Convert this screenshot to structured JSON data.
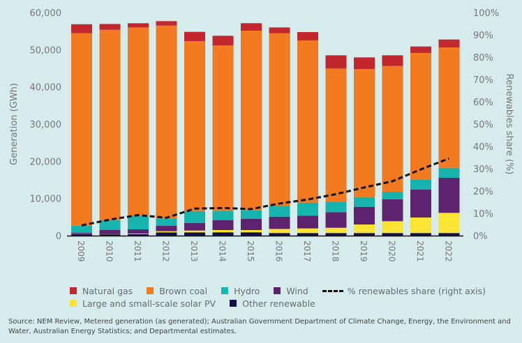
{
  "chart_data": {
    "type": "bar",
    "stacked": true,
    "categories": [
      "2009",
      "2010",
      "2011",
      "2012",
      "2013",
      "2014",
      "2015",
      "2016",
      "2017",
      "2018",
      "2019",
      "2020",
      "2021",
      "2022"
    ],
    "ylabel": "Generation (GWh)",
    "y2label": "Renewables share (%)",
    "ylim": [
      0,
      60000
    ],
    "y2lim": [
      0,
      100
    ],
    "yticks": [
      "0",
      "10,000",
      "20,000",
      "30,000",
      "40,000",
      "50,000",
      "60,000"
    ],
    "y2ticks": [
      "0%",
      "10%",
      "20%",
      "30%",
      "40%",
      "50%",
      "60%",
      "70%",
      "80%",
      "90%",
      "100%"
    ],
    "grid": false,
    "legend_position": "bottom",
    "series": [
      {
        "name": "Other renewable",
        "color": "#10124a",
        "values": [
          400,
          350,
          400,
          880,
          880,
          900,
          900,
          700,
          700,
          700,
          700,
          700,
          700,
          700
        ]
      },
      {
        "name": "Large and small-scale solar PV",
        "color": "#fde333",
        "values": [
          50,
          50,
          150,
          310,
          490,
          600,
          600,
          1100,
          1240,
          1420,
          2300,
          3180,
          4180,
          5430
        ]
      },
      {
        "name": "Wind",
        "color": "#5e236f",
        "values": [
          300,
          1100,
          1130,
          1435,
          2000,
          2690,
          3000,
          3300,
          3440,
          4190,
          4750,
          5930,
          7500,
          9430
        ]
      },
      {
        "name": "Hydro",
        "color": "#17b3ad",
        "values": [
          1900,
          2600,
          3560,
          2005,
          3245,
          2500,
          2310,
          2950,
          3490,
          2690,
          2620,
          2000,
          2750,
          2690
        ]
      },
      {
        "name": "Brown coal",
        "color": "#f47a21",
        "values": [
          51800,
          51250,
          50750,
          51870,
          45690,
          44440,
          48320,
          46380,
          43630,
          35940,
          34440,
          33820,
          34000,
          32380
        ]
      },
      {
        "name": "Natural gas",
        "color": "#c1272d",
        "values": [
          2400,
          1570,
          1130,
          1190,
          2500,
          2620,
          2000,
          1560,
          2250,
          3560,
          3130,
          2870,
          1740,
          2120
        ]
      }
    ],
    "line": {
      "name": "% renewables share (right axis)",
      "color": "#111111",
      "axis": "right",
      "values": [
        4.6,
        7.2,
        9.2,
        8.0,
        12.1,
        12.4,
        11.9,
        14.4,
        16.2,
        18.6,
        21.6,
        24.4,
        29.7,
        34.6
      ]
    }
  },
  "legend": {
    "row1": [
      "Natural gas",
      "Brown coal",
      "Hydro",
      "Wind"
    ],
    "line_label": "% renewables share (right axis)",
    "row2": [
      "Large and small-scale solar PV",
      "Other renewable"
    ]
  },
  "source": "Source: NEM Review, Metered generation (as generated); Australian Government Department of Climate Change, Energy, the Environment and Water, Australian Energy Statistics; and Departmental estimates."
}
